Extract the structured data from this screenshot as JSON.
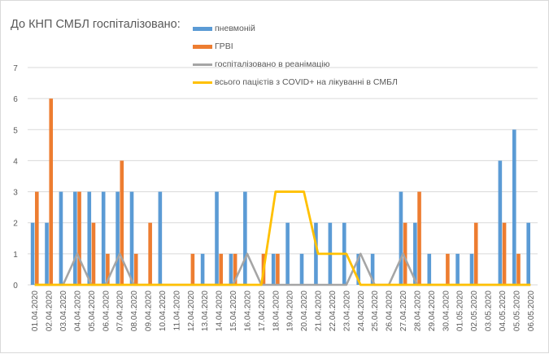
{
  "chart_data": {
    "type": "bar",
    "title": "До КНП СМБЛ госпіталізовано:",
    "xlabel": "",
    "ylabel": "",
    "ylim": [
      0,
      7
    ],
    "yticks": [
      "0",
      "1",
      "2",
      "3",
      "4",
      "5",
      "6",
      "7"
    ],
    "grid": true,
    "legend_position": "top",
    "categories": [
      "01.04.2020",
      "02.04.2020",
      "03.04.2020",
      "04.04.2020",
      "05.04.2020",
      "06.04.2020",
      "07.04.2020",
      "08.04.2020",
      "09.04.2020",
      "10.04.2020",
      "11.04.2020",
      "12.04.2020",
      "13.04.2020",
      "14.04.2020",
      "15.04.2020",
      "16.04.2020",
      "17.04.2020",
      "18.04.2020",
      "19.04.2020",
      "20.04.2020",
      "21.04.2020",
      "22.04.2020",
      "23.04.2020",
      "24.04.2020",
      "25.04.2020",
      "26.04.2020",
      "27.04.2020",
      "28.04.2020",
      "29.04.2020",
      "30.04.2020",
      "01.05.2020",
      "02.05.2020",
      "03.05.2020",
      "04.05.2020",
      "05.05.2020",
      "06.05.2020"
    ],
    "series": [
      {
        "name": "пневмоній",
        "kind": "bar",
        "color": "#5b9bd5",
        "values": [
          2,
          2,
          3,
          3,
          3,
          3,
          3,
          3,
          0,
          3,
          0,
          0,
          1,
          3,
          1,
          3,
          0,
          1,
          2,
          1,
          2,
          2,
          2,
          1,
          1,
          0,
          3,
          2,
          1,
          0,
          1,
          1,
          0,
          4,
          5,
          2
        ]
      },
      {
        "name": "ГРВІ",
        "kind": "bar",
        "color": "#ed7d31",
        "values": [
          3,
          6,
          0,
          3,
          2,
          1,
          4,
          1,
          2,
          0,
          0,
          1,
          0,
          1,
          1,
          0,
          1,
          1,
          0,
          0,
          0,
          0,
          0,
          0,
          0,
          0,
          2,
          3,
          0,
          1,
          0,
          2,
          0,
          2,
          1,
          0
        ]
      },
      {
        "name": "госпіталізовано в реанімацію",
        "kind": "line",
        "color": "#a5a5a5",
        "values": [
          0,
          0,
          0,
          1,
          0,
          0,
          1,
          0,
          0,
          0,
          0,
          0,
          0,
          0,
          0,
          1,
          0,
          0,
          0,
          0,
          0,
          0,
          0,
          1,
          0,
          0,
          1,
          0,
          0,
          0,
          0,
          0,
          0,
          0,
          0,
          0
        ]
      },
      {
        "name": "всього пацієтів з COVID+ на лікуванні в СМБЛ",
        "kind": "line",
        "color": "#ffc000",
        "values": [
          0,
          0,
          0,
          0,
          0,
          0,
          0,
          0,
          0,
          0,
          0,
          0,
          0,
          0,
          0,
          0,
          0,
          3,
          3,
          3,
          1,
          1,
          1,
          0,
          0,
          0,
          0,
          0,
          0,
          0,
          0,
          0,
          0,
          0,
          0,
          0
        ]
      }
    ]
  }
}
